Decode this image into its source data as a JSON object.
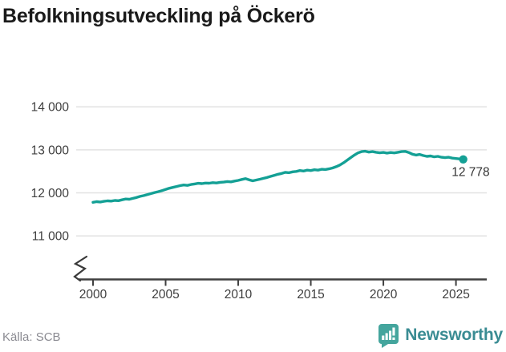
{
  "title": "Befolkningsutveckling på Öckerö",
  "footer": {
    "source_label": "Källa: SCB",
    "brand_name": "Newsworthy"
  },
  "colors": {
    "line": "#14A095",
    "grid": "#e2e2e2",
    "axis": "#404040",
    "tick_label": "#3f3f3f",
    "title_text": "#1a1a1a",
    "source_text": "#8b8b92",
    "brand_text": "#3a8c93",
    "brand_mark": "#44a59d",
    "end_label": "#333333"
  },
  "chart_data": {
    "type": "line",
    "title": "Befolkningsutveckling på Öckerö",
    "series_name": "Befolkning på Öckerö",
    "xlabel": "",
    "ylabel": "",
    "xticks": [
      "2000",
      "2005",
      "2010",
      "2015",
      "2020",
      "2025"
    ],
    "xtick_values": [
      2000,
      2005,
      2010,
      2015,
      2020,
      2025
    ],
    "yticks": [
      {
        "value": 11000,
        "label": "11 000"
      },
      {
        "value": 12000,
        "label": "12 000"
      },
      {
        "value": 13000,
        "label": "13 000"
      },
      {
        "value": 14000,
        "label": "14 000"
      }
    ],
    "xlim": [
      2000,
      2025.5
    ],
    "ylim": [
      11000,
      14000
    ],
    "axis_break": true,
    "grid": "horizontal",
    "legend_position": "none",
    "end_label": "12 778",
    "end_value": 12778,
    "points": [
      [
        2000.0,
        11780
      ],
      [
        2000.25,
        11795
      ],
      [
        2000.5,
        11788
      ],
      [
        2000.75,
        11803
      ],
      [
        2001.0,
        11815
      ],
      [
        2001.25,
        11808
      ],
      [
        2001.5,
        11824
      ],
      [
        2001.75,
        11818
      ],
      [
        2002.0,
        11838
      ],
      [
        2002.25,
        11858
      ],
      [
        2002.5,
        11852
      ],
      [
        2002.75,
        11872
      ],
      [
        2003.0,
        11893
      ],
      [
        2003.25,
        11918
      ],
      [
        2003.5,
        11938
      ],
      [
        2003.75,
        11962
      ],
      [
        2004.0,
        11984
      ],
      [
        2004.25,
        12008
      ],
      [
        2004.5,
        12028
      ],
      [
        2004.75,
        12052
      ],
      [
        2005.0,
        12078
      ],
      [
        2005.25,
        12106
      ],
      [
        2005.5,
        12128
      ],
      [
        2005.75,
        12148
      ],
      [
        2006.0,
        12168
      ],
      [
        2006.25,
        12183
      ],
      [
        2006.5,
        12174
      ],
      [
        2006.75,
        12194
      ],
      [
        2007.0,
        12208
      ],
      [
        2007.25,
        12222
      ],
      [
        2007.5,
        12214
      ],
      [
        2007.75,
        12228
      ],
      [
        2008.0,
        12224
      ],
      [
        2008.25,
        12238
      ],
      [
        2008.5,
        12230
      ],
      [
        2008.75,
        12244
      ],
      [
        2009.0,
        12250
      ],
      [
        2009.25,
        12263
      ],
      [
        2009.5,
        12255
      ],
      [
        2009.75,
        12274
      ],
      [
        2010.0,
        12290
      ],
      [
        2010.25,
        12312
      ],
      [
        2010.5,
        12330
      ],
      [
        2010.75,
        12304
      ],
      [
        2011.0,
        12280
      ],
      [
        2011.25,
        12299
      ],
      [
        2011.5,
        12318
      ],
      [
        2011.75,
        12338
      ],
      [
        2012.0,
        12358
      ],
      [
        2012.25,
        12384
      ],
      [
        2012.5,
        12408
      ],
      [
        2012.75,
        12432
      ],
      [
        2013.0,
        12452
      ],
      [
        2013.25,
        12478
      ],
      [
        2013.5,
        12468
      ],
      [
        2013.75,
        12488
      ],
      [
        2014.0,
        12498
      ],
      [
        2014.25,
        12518
      ],
      [
        2014.5,
        12508
      ],
      [
        2014.75,
        12528
      ],
      [
        2015.0,
        12518
      ],
      [
        2015.25,
        12538
      ],
      [
        2015.5,
        12528
      ],
      [
        2015.75,
        12548
      ],
      [
        2016.0,
        12542
      ],
      [
        2016.25,
        12558
      ],
      [
        2016.5,
        12578
      ],
      [
        2016.75,
        12608
      ],
      [
        2017.0,
        12648
      ],
      [
        2017.25,
        12698
      ],
      [
        2017.5,
        12758
      ],
      [
        2017.75,
        12818
      ],
      [
        2018.0,
        12878
      ],
      [
        2018.25,
        12928
      ],
      [
        2018.5,
        12958
      ],
      [
        2018.75,
        12968
      ],
      [
        2019.0,
        12948
      ],
      [
        2019.25,
        12958
      ],
      [
        2019.5,
        12944
      ],
      [
        2019.75,
        12930
      ],
      [
        2020.0,
        12940
      ],
      [
        2020.25,
        12924
      ],
      [
        2020.5,
        12938
      ],
      [
        2020.75,
        12928
      ],
      [
        2021.0,
        12944
      ],
      [
        2021.25,
        12958
      ],
      [
        2021.5,
        12964
      ],
      [
        2021.75,
        12938
      ],
      [
        2022.0,
        12898
      ],
      [
        2022.25,
        12878
      ],
      [
        2022.5,
        12893
      ],
      [
        2022.75,
        12868
      ],
      [
        2023.0,
        12848
      ],
      [
        2023.25,
        12858
      ],
      [
        2023.5,
        12838
      ],
      [
        2023.75,
        12848
      ],
      [
        2024.0,
        12828
      ],
      [
        2024.25,
        12818
      ],
      [
        2024.5,
        12828
      ],
      [
        2024.75,
        12808
      ],
      [
        2025.0,
        12798
      ],
      [
        2025.25,
        12788
      ],
      [
        2025.5,
        12778
      ]
    ]
  }
}
